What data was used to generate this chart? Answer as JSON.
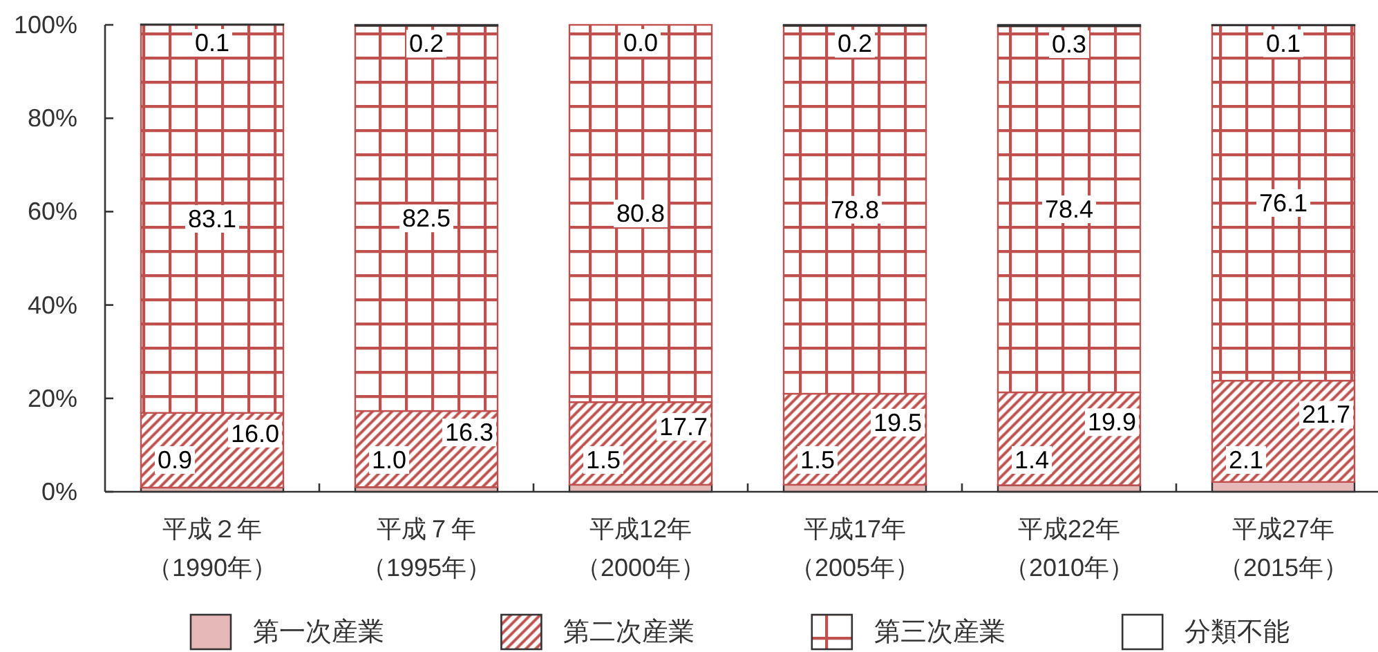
{
  "chart_data": {
    "type": "bar",
    "stacked": true,
    "categories": [
      "平成２年（1990年）",
      "平成７年（1995年）",
      "平成12年（2000年）",
      "平成17年（2005年）",
      "平成22年（2010年）",
      "平成27年（2015年）"
    ],
    "ylim": [
      0,
      100
    ],
    "yticks": [
      {
        "value": 0,
        "label": "0%"
      },
      {
        "value": 20,
        "label": "20%"
      },
      {
        "value": 40,
        "label": "40%"
      },
      {
        "value": 60,
        "label": "60%"
      },
      {
        "value": 80,
        "label": "80%"
      },
      {
        "value": 100,
        "label": "100%"
      }
    ],
    "legend": "bottom",
    "series": [
      {
        "name": "第一次産業",
        "color": "#e6b9b8",
        "values": [
          0.9,
          1.0,
          1.5,
          1.5,
          1.4,
          2.1
        ],
        "value_labels": [
          "0.9",
          "1.0",
          "1.5",
          "1.5",
          "1.4",
          "2.1"
        ]
      },
      {
        "name": "第二次産業",
        "color": "#c0504d",
        "values": [
          16.0,
          16.3,
          17.7,
          19.5,
          19.9,
          21.7
        ],
        "value_labels": [
          "16.0",
          "16.3",
          "17.7",
          "19.5",
          "19.9",
          "21.7"
        ]
      },
      {
        "name": "第三次産業",
        "color": "#c0504d",
        "values": [
          83.1,
          82.5,
          80.8,
          78.8,
          78.4,
          76.1
        ],
        "value_labels": [
          "83.1",
          "82.5",
          "80.8",
          "78.8",
          "78.4",
          "76.1"
        ]
      },
      {
        "name": "分類不能",
        "color": "#ffffff",
        "values": [
          0.1,
          0.2,
          0.0,
          0.2,
          0.3,
          0.1
        ],
        "value_labels": [
          "0.1",
          "0.2",
          "0.0",
          "0.2",
          "0.3",
          "0.1"
        ]
      }
    ]
  }
}
